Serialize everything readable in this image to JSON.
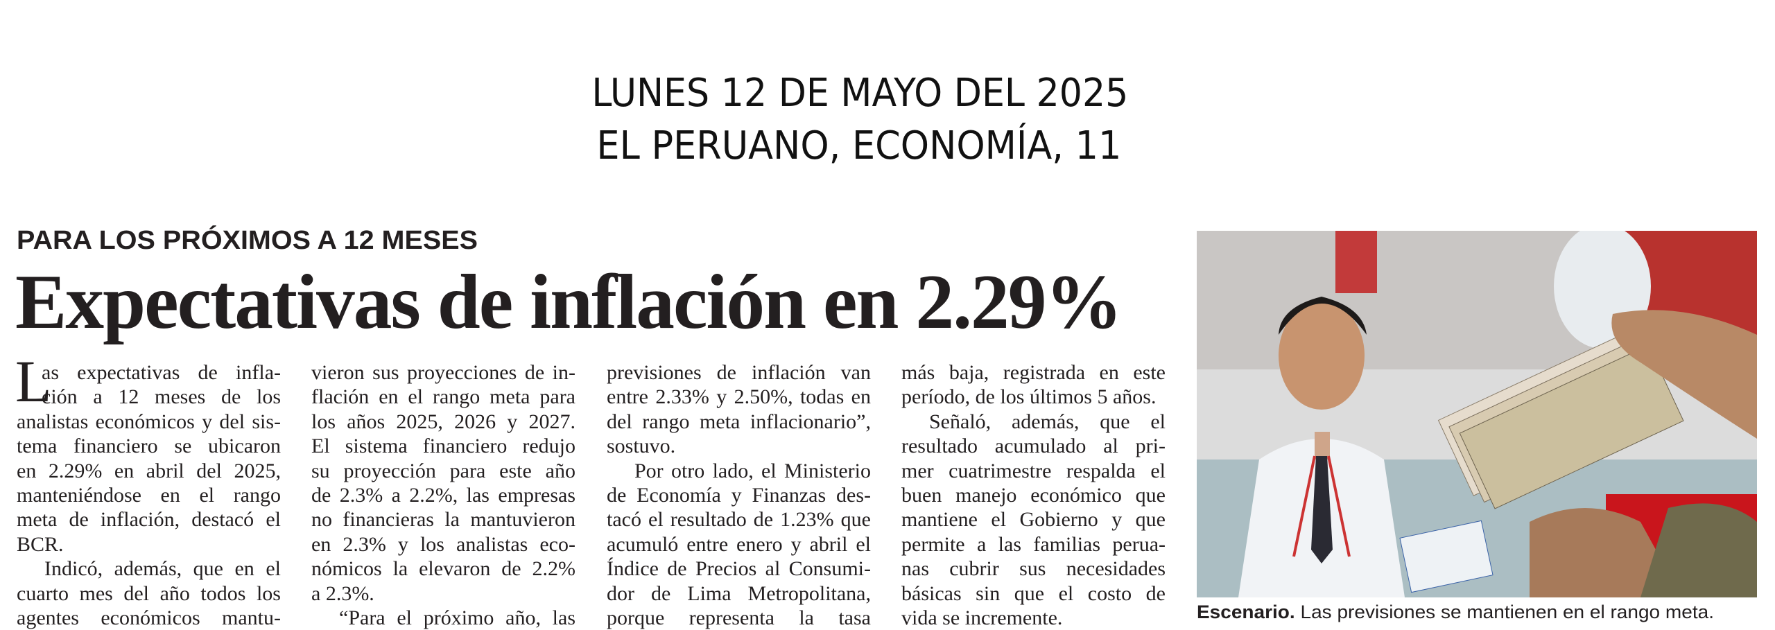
{
  "header": {
    "date": "LUNES 12 DE MAYO DEL 2025",
    "publication": "EL PERUANO, ECONOMÍA, 11"
  },
  "article": {
    "kicker": "PARA LOS PRÓXIMOS A 12 MESES",
    "headline": "Expectativas de inflación en 2.29%",
    "drop_cap": "L",
    "columns": [
      {
        "paragraphs": [
          {
            "lines": [
              "as expectativas de infla-",
              "ción a 12 meses de los",
              "analistas económicos y del sis-",
              "tema financiero se ubicaron",
              "en 2.29% en abril del 2025,",
              "manteniéndose en el rango",
              "meta de inflación, destacó el",
              "BCR."
            ]
          },
          {
            "lines": [
              "Indicó, además, que en el",
              "cuarto mes del año todos los",
              "agentes económicos mantu-"
            ]
          }
        ]
      },
      {
        "paragraphs": [
          {
            "lines": [
              "vieron sus proyecciones de in-",
              "flación en el rango meta para",
              "los años 2025, 2026 y 2027.",
              "El sistema financiero redujo",
              "su proyección para este año",
              "de 2.3% a 2.2%, las empresas",
              "no financieras la mantuvieron",
              "en 2.3% y los analistas eco-",
              "nómicos la elevaron de 2.2%",
              "a 2.3%."
            ]
          },
          {
            "lines": [
              "“Para el próximo año, las"
            ]
          }
        ]
      },
      {
        "paragraphs": [
          {
            "lines": [
              "previsiones de inflación van",
              "entre 2.33% y 2.50%, todas en",
              "del rango meta inflacionario”,",
              "sostuvo."
            ]
          },
          {
            "lines": [
              "Por otro lado, el Ministerio",
              "de Economía y Finanzas des-",
              "tacó el resultado de 1.23% que",
              "acumuló entre enero y abril el",
              "Índice de Precios al Consumi-",
              "dor de Lima Metropolitana,",
              "porque representa la tasa"
            ]
          }
        ]
      },
      {
        "paragraphs": [
          {
            "lines": [
              "más baja, registrada en este",
              "período, de los últimos 5 años."
            ]
          },
          {
            "lines": [
              "Señaló, además, que el",
              "resultado acumulado al pri-",
              "mer cuatrimestre respalda el",
              "buen manejo económico que",
              "mantiene el Gobierno y que",
              "permite a las familias perua-",
              "nas cubrir sus necesidades",
              "básicas sin que el costo de",
              "vida se incremente."
            ]
          }
        ]
      }
    ]
  },
  "photo": {
    "caption_label": "Escenario.",
    "caption_text": "Las previsiones se mantienen en el rango meta."
  }
}
